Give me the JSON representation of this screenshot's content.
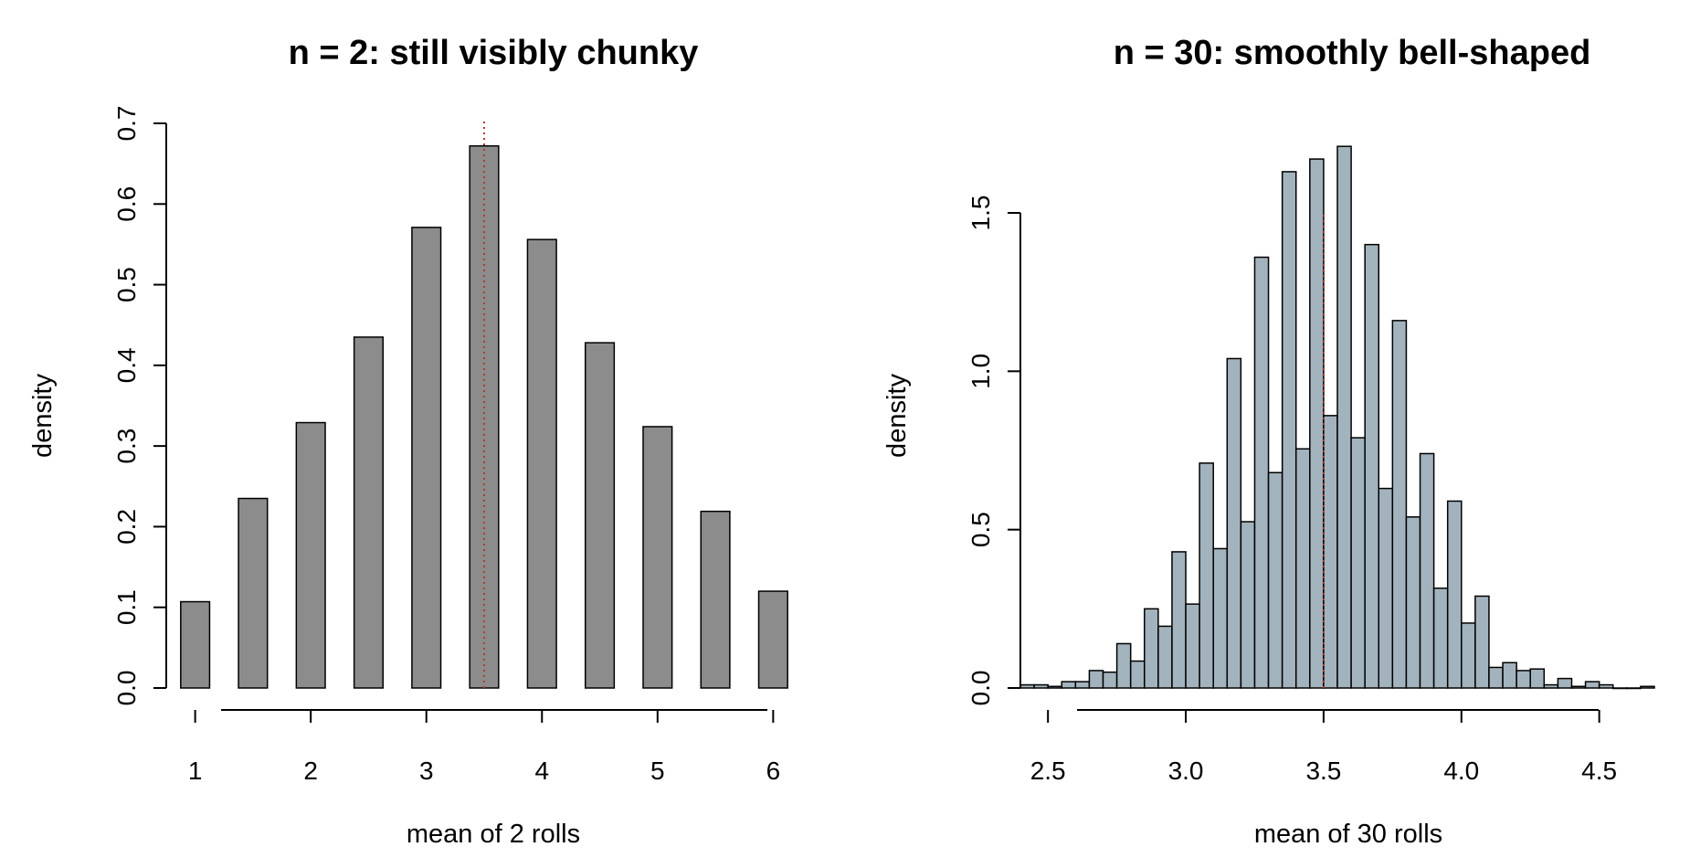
{
  "chart_data": [
    {
      "type": "bar",
      "title": "n = 2: still visibly chunky",
      "xlabel": "mean of 2 rolls",
      "ylabel": "density",
      "xlim": [
        0.75,
        6.25
      ],
      "ylim": [
        0,
        0.7
      ],
      "x_ticks": [
        1,
        2,
        3,
        4,
        5,
        6
      ],
      "y_ticks": [
        0.0,
        0.1,
        0.2,
        0.3,
        0.4,
        0.5,
        0.6,
        0.7
      ],
      "x_tick_labels": [
        "1",
        "2",
        "3",
        "4",
        "5",
        "6"
      ],
      "y_tick_labels": [
        "0.0",
        "0.1",
        "0.2",
        "0.3",
        "0.4",
        "0.5",
        "0.6",
        "0.7"
      ],
      "bar_fill": "#8c8c8c",
      "bar_width": 0.25,
      "x": [
        1.0,
        1.5,
        2.0,
        2.5,
        3.0,
        3.5,
        4.0,
        4.5,
        5.0,
        5.5,
        6.0
      ],
      "values": [
        0.107,
        0.235,
        0.329,
        0.435,
        0.571,
        0.672,
        0.556,
        0.428,
        0.324,
        0.219,
        0.12
      ],
      "reference_line": {
        "x": 3.5,
        "color": "#b03a2e",
        "style": "dotted"
      }
    },
    {
      "type": "bar",
      "title": "n = 30: smoothly bell-shaped",
      "xlabel": "mean of 30 rolls",
      "ylabel": "density",
      "xlim": [
        2.4,
        4.7
      ],
      "ylim": [
        0,
        1.5
      ],
      "x_ticks": [
        2.5,
        3.0,
        3.5,
        4.0,
        4.5
      ],
      "y_ticks": [
        0.0,
        0.5,
        1.0,
        1.5
      ],
      "x_tick_labels": [
        "2.5",
        "3.0",
        "3.5",
        "4.0",
        "4.5"
      ],
      "y_tick_labels": [
        "0.0",
        "0.5",
        "1.0",
        "1.5"
      ],
      "bar_fill": "#a3b3bd",
      "bin_width": 0.05,
      "bin_starts": [
        2.4,
        2.45,
        2.5,
        2.55,
        2.6,
        2.65,
        2.7,
        2.75,
        2.8,
        2.85,
        2.9,
        2.95,
        3.0,
        3.05,
        3.1,
        3.15,
        3.2,
        3.25,
        3.3,
        3.35,
        3.4,
        3.45,
        3.5,
        3.55,
        3.6,
        3.65,
        3.7,
        3.75,
        3.8,
        3.85,
        3.9,
        3.95,
        4.0,
        4.05,
        4.1,
        4.15,
        4.2,
        4.25,
        4.3,
        4.35,
        4.4,
        4.45,
        4.5,
        4.55,
        4.6,
        4.65
      ],
      "values": [
        0.01,
        0.01,
        0.005,
        0.02,
        0.02,
        0.055,
        0.05,
        0.14,
        0.085,
        0.25,
        0.195,
        0.43,
        0.265,
        0.71,
        0.44,
        1.04,
        0.525,
        1.36,
        0.68,
        1.63,
        0.755,
        1.67,
        0.86,
        1.71,
        0.79,
        1.4,
        0.63,
        1.16,
        0.54,
        0.74,
        0.315,
        0.59,
        0.205,
        0.29,
        0.065,
        0.08,
        0.055,
        0.06,
        0.01,
        0.03,
        0.005,
        0.02,
        0.01,
        0.0,
        0.0,
        0.005
      ],
      "reference_line": {
        "x": 3.5,
        "color": "#b03a2e",
        "style": "dotted"
      }
    }
  ]
}
